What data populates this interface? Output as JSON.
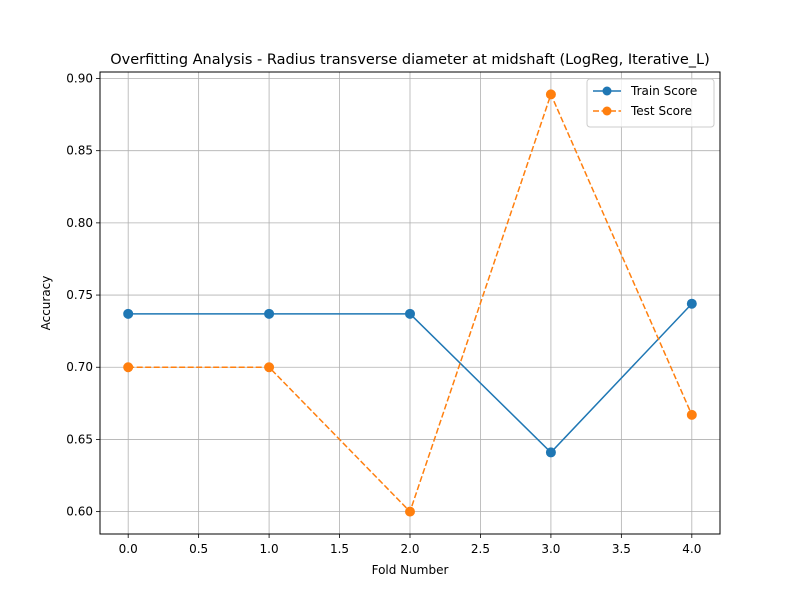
{
  "chart_data": {
    "type": "line",
    "title": "Overfitting Analysis - Radius transverse diameter at midshaft (LogReg, Iterative_L)",
    "xlabel": "Fold Number",
    "ylabel": "Accuracy",
    "x": [
      0,
      1,
      2,
      3,
      4
    ],
    "xlim": [
      -0.2,
      4.2
    ],
    "ylim": [
      0.5845,
      0.9045
    ],
    "xticks": [
      0.0,
      0.5,
      1.0,
      1.5,
      2.0,
      2.5,
      3.0,
      3.5,
      4.0
    ],
    "xtick_labels": [
      "0.0",
      "0.5",
      "1.0",
      "1.5",
      "2.0",
      "2.5",
      "3.0",
      "3.5",
      "4.0"
    ],
    "yticks": [
      0.6,
      0.65,
      0.7,
      0.75,
      0.8,
      0.85,
      0.9
    ],
    "ytick_labels": [
      "0.60",
      "0.65",
      "0.70",
      "0.75",
      "0.80",
      "0.85",
      "0.90"
    ],
    "grid": true,
    "legend_position": "top-right",
    "series": [
      {
        "name": "Train Score",
        "values": [
          0.737,
          0.737,
          0.737,
          0.641,
          0.744
        ],
        "color": "#1f77b4",
        "style": "solid"
      },
      {
        "name": "Test Score",
        "values": [
          0.7,
          0.7,
          0.6,
          0.889,
          0.667
        ],
        "color": "#ff7f0e",
        "style": "dashed"
      }
    ]
  }
}
